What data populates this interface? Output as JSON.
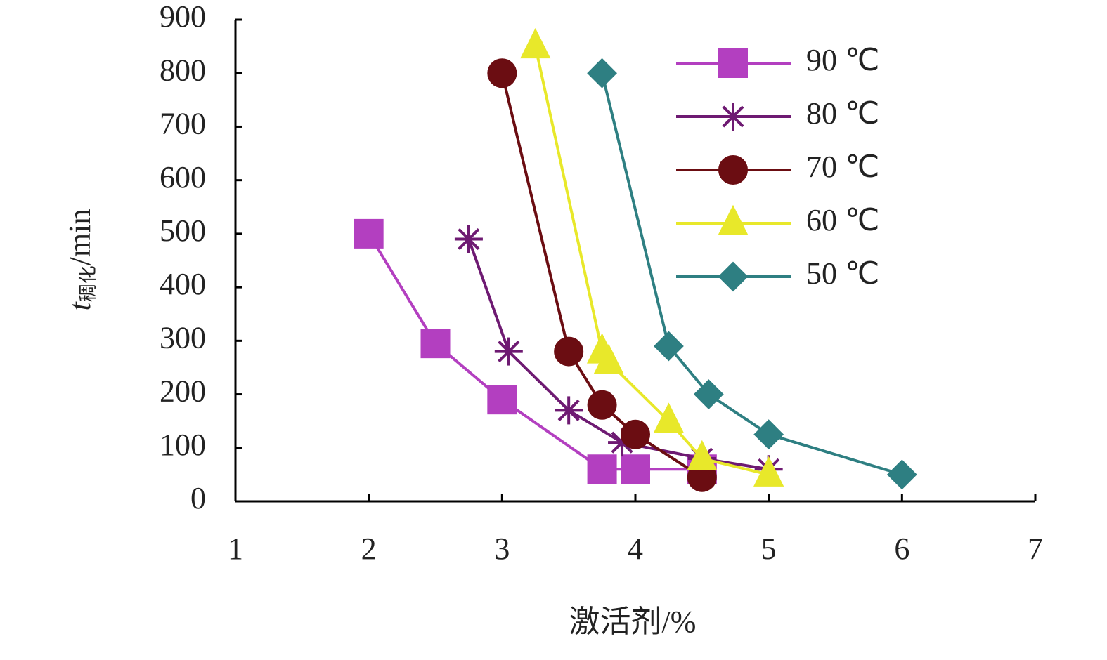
{
  "chart_data": {
    "type": "line",
    "ylabel": {
      "symbol": "t",
      "subscript": "稠化",
      "unit": "/min"
    },
    "xlabel": "激活剂/%",
    "xlim": [
      1,
      7
    ],
    "xticks": [
      1,
      2,
      3,
      4,
      5,
      6,
      7
    ],
    "ylim": [
      0,
      900
    ],
    "yticks": [
      0,
      100,
      200,
      300,
      400,
      500,
      600,
      700,
      800,
      900
    ],
    "legend": "upper right",
    "series": [
      {
        "name": "90 ℃",
        "color": "#b33fc0",
        "marker": "square",
        "x": [
          2,
          2.5,
          3,
          3.75,
          4,
          4.5
        ],
        "values": [
          500,
          295,
          190,
          60,
          60,
          60
        ]
      },
      {
        "name": "80 ℃",
        "color": "#6e1a72",
        "marker": "star",
        "x": [
          2.75,
          3.05,
          3.5,
          3.9,
          4.5,
          5
        ],
        "values": [
          490,
          280,
          170,
          110,
          80,
          60
        ]
      },
      {
        "name": "70 ℃",
        "color": "#6b0d12",
        "marker": "circle",
        "x": [
          3,
          3.5,
          3.75,
          4,
          4.5
        ],
        "values": [
          800,
          280,
          180,
          125,
          45
        ]
      },
      {
        "name": "60 ℃",
        "color": "#e8e82a",
        "marker": "triangle",
        "x": [
          3.25,
          3.75,
          3.8,
          4.25,
          4.5,
          5
        ],
        "values": [
          850,
          280,
          260,
          150,
          80,
          50
        ]
      },
      {
        "name": "50 ℃",
        "color": "#2e7f82",
        "marker": "diamond",
        "x": [
          3.75,
          4.25,
          4.55,
          5,
          6
        ],
        "values": [
          800,
          290,
          200,
          125,
          50
        ]
      }
    ]
  }
}
